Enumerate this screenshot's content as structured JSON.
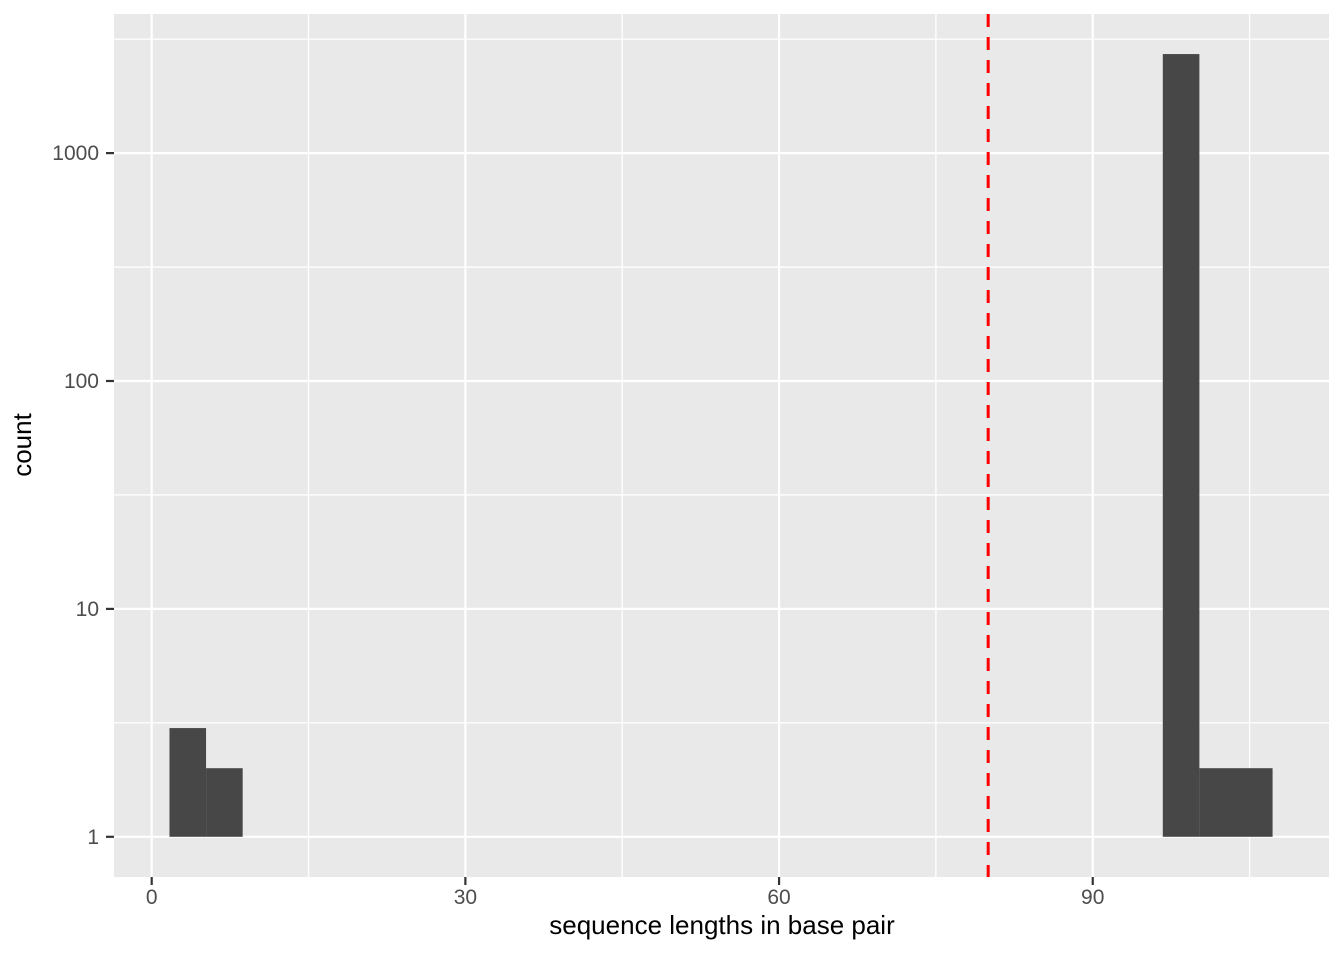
{
  "figure": {
    "kind": "ggplot-histogram",
    "background": "#ffffff"
  },
  "chart_data": {
    "type": "bar",
    "subtype": "histogram",
    "title": "",
    "xlabel": "sequence lengths in base pair",
    "ylabel": "count",
    "y_scale": "log10",
    "grid": "on",
    "legend": "none",
    "x_ticks": [
      0,
      30,
      60,
      90
    ],
    "x_tick_labels": [
      "0",
      "30",
      "60",
      "90"
    ],
    "x_minor_ticks": [
      15,
      45,
      75,
      105
    ],
    "y_ticks": [
      1,
      10,
      100,
      1000
    ],
    "y_tick_labels": [
      "1",
      "10",
      "100",
      "1000"
    ],
    "y_minor_ticks": [
      3.162,
      31.62,
      316.2,
      3162
    ],
    "xlim": [
      -3.6,
      112.6
    ],
    "ylim": [
      0.67,
      4030
    ],
    "binwidth": 3.5,
    "bins": [
      {
        "x_start": 1.7,
        "x_end": 5.2,
        "count": 3
      },
      {
        "x_start": 5.2,
        "x_end": 8.7,
        "count": 2
      },
      {
        "x_start": 96.7,
        "x_end": 100.2,
        "count": 2720
      },
      {
        "x_start": 100.2,
        "x_end": 103.7,
        "count": 2
      },
      {
        "x_start": 103.7,
        "x_end": 107.2,
        "count": 2
      }
    ],
    "vline": {
      "x": 80,
      "style": "dashed",
      "color": "#FF0000"
    },
    "colors": {
      "bar_fill": "#474747",
      "panel_background": "#E9E9E9",
      "grid_major": "#FFFFFF",
      "grid_minor": "#FFFFFF",
      "tick_mark": "#333333",
      "tick_label": "#4D4D4D",
      "axis_title": "#000000"
    }
  }
}
